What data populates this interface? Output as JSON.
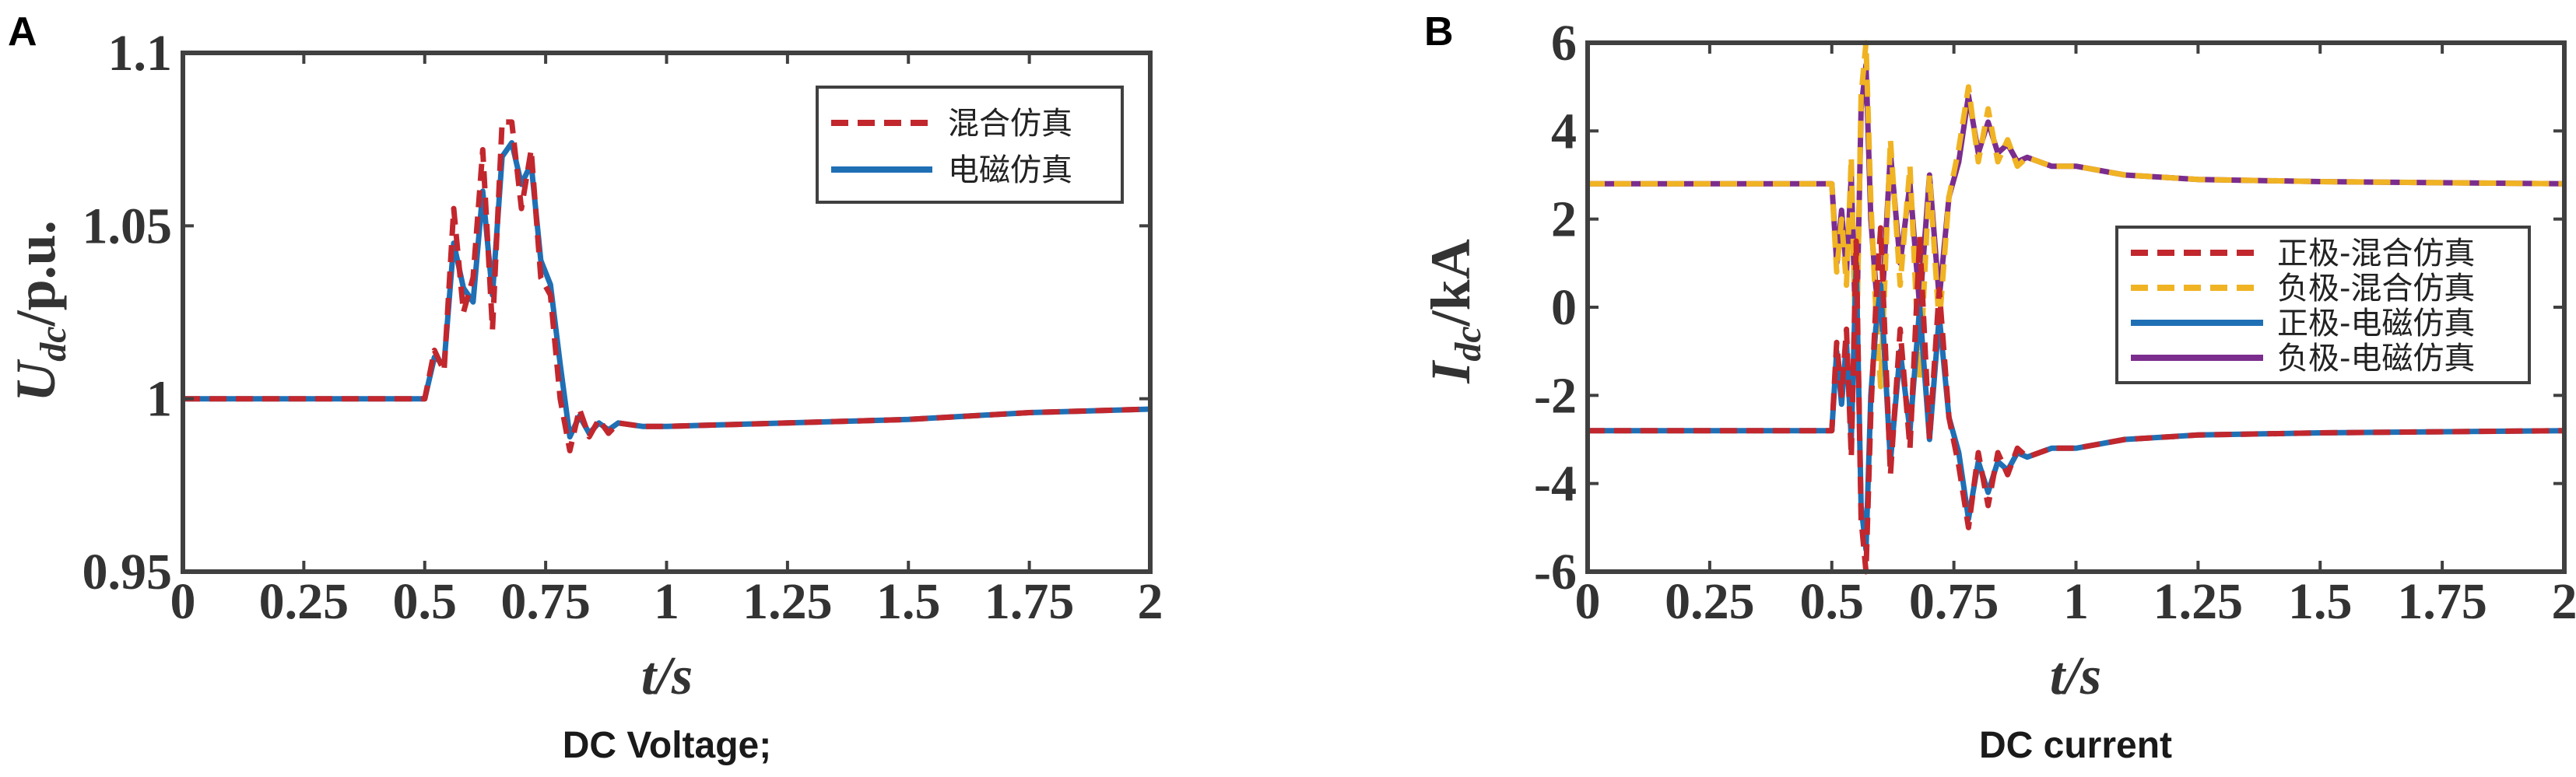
{
  "panels": [
    {
      "letter": "A",
      "caption": "DC Voltage;",
      "ylabel_main": "U",
      "ylabel_sub": "dc",
      "ylabel_unit": "/p.u.",
      "xlabel": "t/s",
      "xticks": [
        "0",
        "0.25",
        "0.5",
        "0.75",
        "1",
        "1.25",
        "1.5",
        "1.75",
        "2"
      ],
      "yticks": [
        "0.95",
        "1",
        "1.05",
        "1.1"
      ],
      "legend": [
        "混合仿真",
        "电磁仿真"
      ]
    },
    {
      "letter": "B",
      "caption": "DC current",
      "ylabel_main": "I",
      "ylabel_sub": "dc",
      "ylabel_unit": "/kA",
      "xlabel": "t/s",
      "xticks": [
        "0",
        "0.25",
        "0.5",
        "0.75",
        "1",
        "1.25",
        "1.5",
        "1.75",
        "2"
      ],
      "yticks": [
        "-6",
        "-4",
        "-2",
        "0",
        "2",
        "4",
        "6"
      ],
      "legend": [
        "正极-混合仿真",
        "负极-混合仿真",
        "正极-电磁仿真",
        "负极-电磁仿真"
      ]
    }
  ],
  "colors": {
    "red": "#c1272d",
    "blue": "#1f6fb5",
    "yellow": "#f0b323",
    "purple": "#7b2d8e"
  },
  "chart_data": [
    {
      "type": "line",
      "title": "",
      "caption": "DC Voltage;",
      "xlabel": "t/s",
      "ylabel": "Udc/p.u.",
      "xlim": [
        0,
        2
      ],
      "ylim": [
        0.95,
        1.1
      ],
      "grid": false,
      "legend_position": "top-right",
      "series": [
        {
          "name": "电磁仿真",
          "style": "solid",
          "color": "#1f6fb5",
          "x": [
            0,
            0.5,
            0.52,
            0.54,
            0.56,
            0.58,
            0.6,
            0.62,
            0.64,
            0.66,
            0.68,
            0.7,
            0.72,
            0.74,
            0.76,
            0.78,
            0.8,
            0.82,
            0.84,
            0.86,
            0.88,
            0.9,
            0.95,
            1.0,
            1.25,
            1.5,
            1.75,
            2.0
          ],
          "y": [
            1.0,
            1.0,
            1.012,
            1.01,
            1.045,
            1.032,
            1.028,
            1.06,
            1.03,
            1.07,
            1.074,
            1.062,
            1.068,
            1.04,
            1.033,
            1.01,
            0.989,
            0.995,
            0.99,
            0.993,
            0.991,
            0.993,
            0.992,
            0.992,
            0.993,
            0.994,
            0.996,
            0.997
          ]
        },
        {
          "name": "混合仿真",
          "style": "dashed",
          "color": "#c1272d",
          "x": [
            0,
            0.5,
            0.52,
            0.54,
            0.56,
            0.58,
            0.6,
            0.62,
            0.64,
            0.66,
            0.68,
            0.7,
            0.72,
            0.74,
            0.76,
            0.78,
            0.8,
            0.82,
            0.84,
            0.86,
            0.88,
            0.9,
            0.95,
            1.0,
            1.25,
            1.5,
            1.75,
            2.0
          ],
          "y": [
            1.0,
            1.0,
            1.014,
            1.008,
            1.055,
            1.025,
            1.035,
            1.072,
            1.02,
            1.08,
            1.08,
            1.055,
            1.072,
            1.035,
            1.03,
            1.0,
            0.985,
            0.997,
            0.989,
            0.994,
            0.99,
            0.993,
            0.992,
            0.992,
            0.993,
            0.994,
            0.996,
            0.997
          ]
        }
      ]
    },
    {
      "type": "line",
      "title": "",
      "caption": "DC current",
      "xlabel": "t/s",
      "ylabel": "Idc/kA",
      "xlim": [
        0,
        2
      ],
      "ylim": [
        -6,
        6
      ],
      "grid": false,
      "legend_position": "right",
      "series": [
        {
          "name": "负极-电磁仿真",
          "style": "solid",
          "color": "#7b2d8e",
          "x": [
            0,
            0.5,
            0.51,
            0.52,
            0.53,
            0.54,
            0.55,
            0.56,
            0.57,
            0.58,
            0.59,
            0.6,
            0.62,
            0.64,
            0.66,
            0.68,
            0.7,
            0.72,
            0.74,
            0.76,
            0.78,
            0.8,
            0.82,
            0.84,
            0.86,
            0.88,
            0.9,
            0.95,
            1.0,
            1.1,
            1.25,
            1.5,
            2.0
          ],
          "y": [
            2.8,
            2.8,
            1.0,
            2.2,
            0.8,
            3.0,
            -1.0,
            4.5,
            5.5,
            2.0,
            0.5,
            -0.5,
            3.5,
            1.0,
            2.8,
            0.0,
            3.0,
            0.2,
            2.5,
            3.3,
            4.8,
            3.5,
            4.2,
            3.5,
            3.7,
            3.3,
            3.4,
            3.2,
            3.2,
            3.0,
            2.9,
            2.85,
            2.8
          ]
        },
        {
          "name": "负极-混合仿真",
          "style": "dashed",
          "color": "#f0b323",
          "x": [
            0,
            0.5,
            0.51,
            0.52,
            0.53,
            0.54,
            0.55,
            0.56,
            0.57,
            0.58,
            0.59,
            0.6,
            0.62,
            0.64,
            0.66,
            0.68,
            0.7,
            0.72,
            0.74,
            0.76,
            0.78,
            0.8,
            0.82,
            0.84,
            0.86,
            0.88,
            0.9,
            0.95,
            1.0,
            1.1,
            1.25,
            1.5,
            2.0
          ],
          "y": [
            2.8,
            2.8,
            0.8,
            2.0,
            0.5,
            3.4,
            -1.5,
            4.8,
            6.0,
            2.4,
            0.0,
            -1.8,
            3.8,
            0.5,
            3.2,
            -1.6,
            3.0,
            -0.4,
            2.5,
            3.6,
            5.0,
            3.3,
            4.5,
            3.3,
            3.8,
            3.2,
            3.4,
            3.2,
            3.2,
            3.0,
            2.9,
            2.85,
            2.8
          ]
        },
        {
          "name": "正极-电磁仿真",
          "style": "solid",
          "color": "#1f6fb5",
          "x": [
            0,
            0.5,
            0.51,
            0.52,
            0.53,
            0.54,
            0.55,
            0.56,
            0.57,
            0.58,
            0.59,
            0.6,
            0.62,
            0.64,
            0.66,
            0.68,
            0.7,
            0.72,
            0.74,
            0.76,
            0.78,
            0.8,
            0.82,
            0.84,
            0.86,
            0.88,
            0.9,
            0.95,
            1.0,
            1.1,
            1.25,
            1.5,
            2.0
          ],
          "y": [
            -2.8,
            -2.8,
            -1.0,
            -2.2,
            -0.8,
            -3.0,
            1.0,
            -4.5,
            -5.5,
            -2.0,
            -0.5,
            0.5,
            -3.5,
            -1.0,
            -2.8,
            0.0,
            -3.0,
            -0.2,
            -2.5,
            -3.3,
            -4.8,
            -3.5,
            -4.2,
            -3.5,
            -3.7,
            -3.3,
            -3.4,
            -3.2,
            -3.2,
            -3.0,
            -2.9,
            -2.85,
            -2.8
          ]
        },
        {
          "name": "正极-混合仿真",
          "style": "dashed",
          "color": "#c1272d",
          "x": [
            0,
            0.5,
            0.51,
            0.52,
            0.53,
            0.54,
            0.55,
            0.56,
            0.57,
            0.58,
            0.59,
            0.6,
            0.62,
            0.64,
            0.66,
            0.68,
            0.7,
            0.72,
            0.74,
            0.76,
            0.78,
            0.8,
            0.82,
            0.84,
            0.86,
            0.88,
            0.9,
            0.95,
            1.0,
            1.1,
            1.25,
            1.5,
            2.0
          ],
          "y": [
            -2.8,
            -2.8,
            -0.8,
            -2.0,
            -0.5,
            -3.4,
            1.5,
            -4.8,
            -6.0,
            -2.4,
            0.0,
            1.8,
            -3.8,
            -0.5,
            -3.2,
            1.6,
            -3.0,
            0.4,
            -2.5,
            -3.6,
            -5.0,
            -3.3,
            -4.5,
            -3.3,
            -3.8,
            -3.2,
            -3.4,
            -3.2,
            -3.2,
            -3.0,
            -2.9,
            -2.85,
            -2.8
          ]
        }
      ]
    }
  ]
}
